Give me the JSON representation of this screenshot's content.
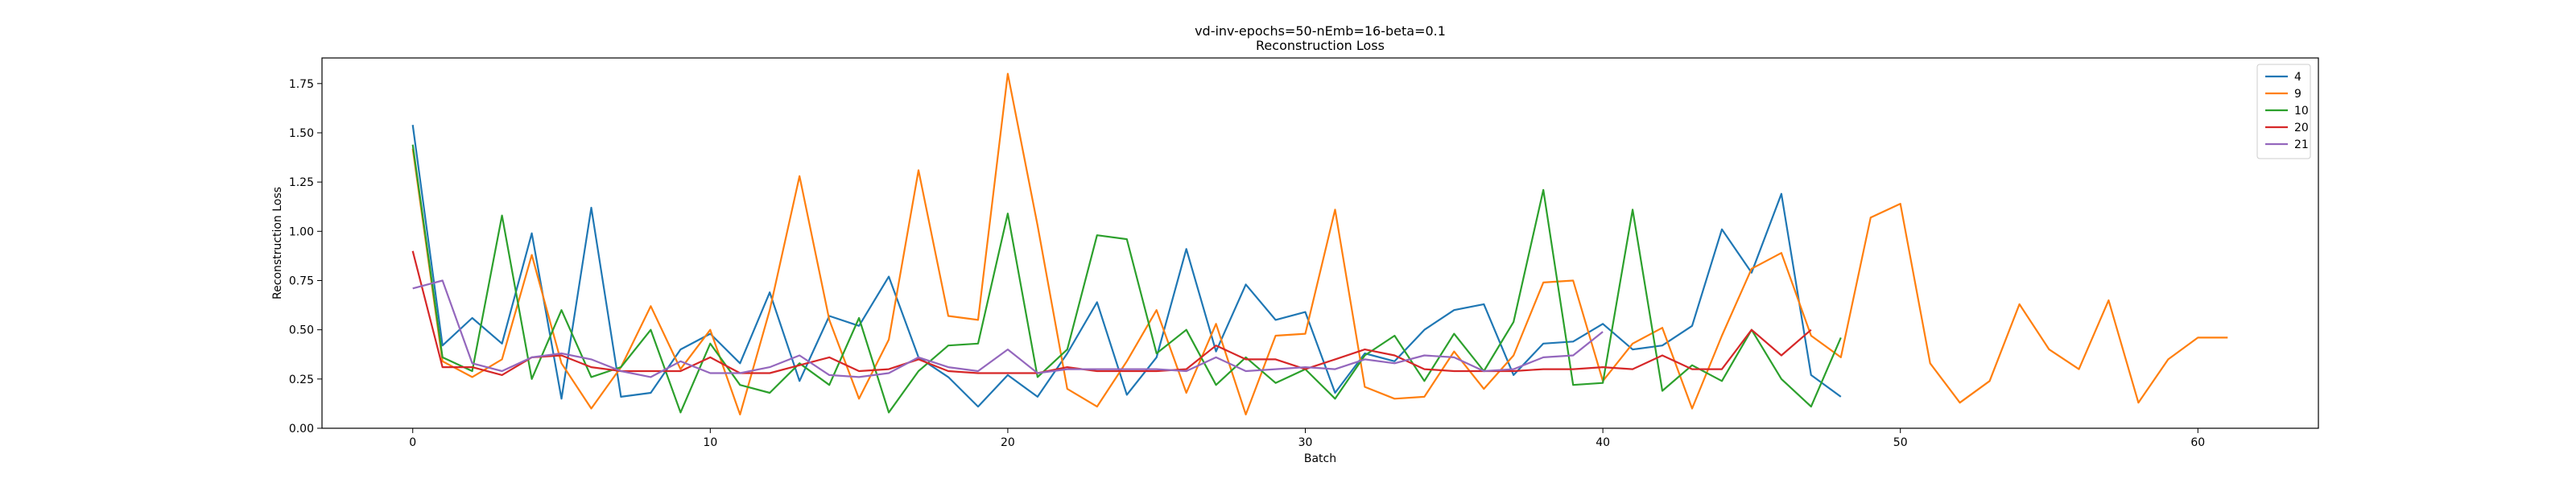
{
  "chart_data": {
    "type": "line",
    "title": "vd-inv-epochs=50-nEmb=16-beta=0.1",
    "subtitle": "Reconstruction Loss",
    "xlabel": "Batch",
    "ylabel": "Reconstruction Loss",
    "xlim": [
      -3.05,
      64.05
    ],
    "ylim": [
      0.0,
      1.88
    ],
    "xticks": [
      0,
      10,
      20,
      30,
      40,
      50,
      60
    ],
    "yticks": [
      0.0,
      0.25,
      0.5,
      0.75,
      1.0,
      1.25,
      1.5,
      1.75
    ],
    "ytick_labels": [
      "0.00",
      "0.25",
      "0.50",
      "0.75",
      "1.00",
      "1.25",
      "1.50",
      "1.75"
    ],
    "grid": false,
    "legend_position": "top-right",
    "series": [
      {
        "name": "4",
        "color": "#1f77b4",
        "values": [
          1.54,
          0.42,
          0.56,
          0.43,
          0.99,
          0.15,
          1.12,
          0.16,
          0.18,
          0.4,
          0.48,
          0.33,
          0.69,
          0.24,
          0.57,
          0.52,
          0.77,
          0.36,
          0.26,
          0.11,
          0.27,
          0.16,
          0.38,
          0.64,
          0.17,
          0.36,
          0.91,
          0.39,
          0.73,
          0.55,
          0.59,
          0.18,
          0.38,
          0.34,
          0.5,
          0.6,
          0.63,
          0.27,
          0.43,
          0.44,
          0.53,
          0.4,
          0.42,
          0.52,
          1.01,
          0.79,
          1.19,
          0.27,
          0.16
        ]
      },
      {
        "name": "9",
        "color": "#ff7f0e",
        "values": [
          1.42,
          0.34,
          0.26,
          0.35,
          0.88,
          0.33,
          0.1,
          0.31,
          0.62,
          0.3,
          0.5,
          0.07,
          0.6,
          1.28,
          0.55,
          0.15,
          0.45,
          1.31,
          0.57,
          0.55,
          1.8,
          1.03,
          0.2,
          0.11,
          0.34,
          0.6,
          0.18,
          0.53,
          0.07,
          0.47,
          0.48,
          1.11,
          0.21,
          0.15,
          0.16,
          0.39,
          0.2,
          0.37,
          0.74,
          0.75,
          0.24,
          0.43,
          0.51,
          0.1,
          0.47,
          0.81,
          0.89,
          0.47,
          0.36,
          1.07,
          1.14,
          0.33,
          0.13,
          0.24,
          0.63,
          0.4,
          0.3,
          0.65,
          0.13,
          0.35,
          0.46,
          0.46
        ]
      },
      {
        "name": "10",
        "color": "#2ca02c",
        "values": [
          1.44,
          0.36,
          0.29,
          1.08,
          0.25,
          0.6,
          0.26,
          0.31,
          0.5,
          0.08,
          0.43,
          0.22,
          0.18,
          0.33,
          0.22,
          0.56,
          0.08,
          0.29,
          0.42,
          0.43,
          1.09,
          0.26,
          0.4,
          0.98,
          0.96,
          0.38,
          0.5,
          0.22,
          0.36,
          0.23,
          0.3,
          0.15,
          0.37,
          0.47,
          0.24,
          0.48,
          0.29,
          0.54,
          1.21,
          0.22,
          0.23,
          1.11,
          0.19,
          0.32,
          0.24,
          0.5,
          0.25,
          0.11,
          0.46
        ]
      },
      {
        "name": "20",
        "color": "#d62728",
        "values": [
          0.9,
          0.31,
          0.31,
          0.27,
          0.36,
          0.37,
          0.31,
          0.29,
          0.29,
          0.29,
          0.36,
          0.28,
          0.28,
          0.32,
          0.36,
          0.29,
          0.3,
          0.35,
          0.29,
          0.28,
          0.28,
          0.28,
          0.31,
          0.29,
          0.29,
          0.29,
          0.3,
          0.42,
          0.35,
          0.35,
          0.3,
          0.35,
          0.4,
          0.37,
          0.3,
          0.29,
          0.29,
          0.29,
          0.3,
          0.3,
          0.31,
          0.3,
          0.37,
          0.3,
          0.3,
          0.5,
          0.37,
          0.5
        ]
      },
      {
        "name": "21",
        "color": "#9467bd",
        "values": [
          0.71,
          0.75,
          0.33,
          0.29,
          0.36,
          0.38,
          0.35,
          0.29,
          0.26,
          0.34,
          0.28,
          0.28,
          0.31,
          0.37,
          0.27,
          0.26,
          0.28,
          0.36,
          0.31,
          0.29,
          0.4,
          0.28,
          0.3,
          0.3,
          0.3,
          0.3,
          0.29,
          0.36,
          0.29,
          0.3,
          0.31,
          0.3,
          0.35,
          0.33,
          0.37,
          0.36,
          0.29,
          0.3,
          0.36,
          0.37,
          0.49
        ]
      }
    ]
  }
}
